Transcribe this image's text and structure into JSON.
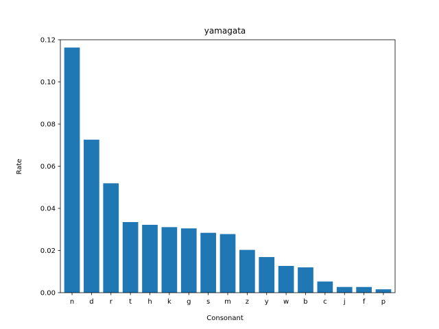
{
  "chart_data": {
    "type": "bar",
    "title": "yamagata",
    "xlabel": "Consonant",
    "ylabel": "Rate",
    "categories": [
      "n",
      "d",
      "r",
      "t",
      "h",
      "k",
      "g",
      "s",
      "m",
      "z",
      "y",
      "w",
      "b",
      "c",
      "j",
      "f",
      "p"
    ],
    "values": [
      0.1163,
      0.0726,
      0.0519,
      0.0335,
      0.0322,
      0.0311,
      0.0305,
      0.0284,
      0.0278,
      0.0203,
      0.0169,
      0.0127,
      0.012,
      0.0053,
      0.0027,
      0.0027,
      0.0016
    ],
    "ylim": [
      0,
      0.12
    ],
    "yticks": [
      "0.00",
      "0.02",
      "0.04",
      "0.06",
      "0.08",
      "0.10",
      "0.12"
    ],
    "grid": false,
    "bar_color": "#1f77b4"
  }
}
